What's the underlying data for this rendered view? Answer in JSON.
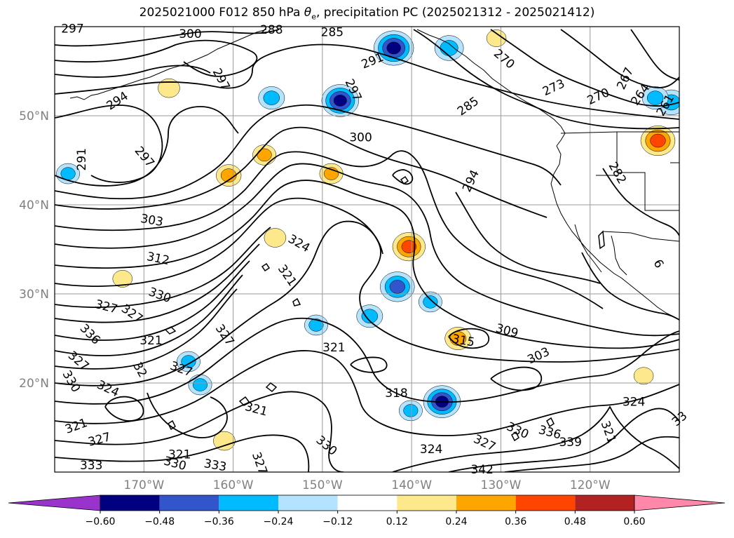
{
  "title": {
    "prefix": "2025021000 F012 850 hPa",
    "symbol": "θ",
    "symbol_sub": "e",
    "suffix": ", precipitation PC (2025021312 - 2025021412)"
  },
  "chart_data": {
    "type": "contour",
    "map_extent": {
      "lon": [
        -180,
        -110
      ],
      "lat": [
        10,
        60
      ]
    },
    "grid": true,
    "x_ticks": [
      "170°W",
      "160°W",
      "150°W",
      "140°W",
      "130°W",
      "120°W"
    ],
    "x_tick_lons": [
      -170,
      -160,
      -150,
      -140,
      -130,
      -120
    ],
    "y_ticks": [
      "20°N",
      "30°N",
      "40°N",
      "50°N"
    ],
    "y_tick_lats": [
      20,
      30,
      40,
      50
    ],
    "theta_e_contour_labels": [
      {
        "text": "297",
        "lon": -178.0,
        "lat": 59.8,
        "rot": 0
      },
      {
        "text": "300",
        "lon": -164.8,
        "lat": 59.2,
        "rot": 0
      },
      {
        "text": "288",
        "lon": -155.7,
        "lat": 59.7,
        "rot": 0
      },
      {
        "text": "285",
        "lon": -148.9,
        "lat": 59.4,
        "rot": 0
      },
      {
        "text": "291",
        "lon": -144.4,
        "lat": 56.2,
        "rot": 22
      },
      {
        "text": "297",
        "lon": -161.3,
        "lat": 54.1,
        "rot": -62
      },
      {
        "text": "294",
        "lon": -173.0,
        "lat": 51.7,
        "rot": 33
      },
      {
        "text": "297",
        "lon": -146.5,
        "lat": 52.9,
        "rot": -65
      },
      {
        "text": "285",
        "lon": -133.7,
        "lat": 51.1,
        "rot": 35
      },
      {
        "text": "270",
        "lon": -129.6,
        "lat": 56.4,
        "rot": -40
      },
      {
        "text": "273",
        "lon": -124.1,
        "lat": 53.2,
        "rot": 25
      },
      {
        "text": "270",
        "lon": -119.1,
        "lat": 52.2,
        "rot": 25
      },
      {
        "text": "267",
        "lon": -116.1,
        "lat": 54.2,
        "rot": 65
      },
      {
        "text": "264",
        "lon": -114.4,
        "lat": 52.4,
        "rot": 55
      },
      {
        "text": "261",
        "lon": -111.6,
        "lat": 51.2,
        "rot": 60
      },
      {
        "text": "291",
        "lon": -177.0,
        "lat": 45.1,
        "rot": 90
      },
      {
        "text": "297",
        "lon": -169.9,
        "lat": 45.4,
        "rot": -50
      },
      {
        "text": "300",
        "lon": -145.7,
        "lat": 47.6,
        "rot": 0
      },
      {
        "text": "294",
        "lon": -133.4,
        "lat": 42.7,
        "rot": 65
      },
      {
        "text": "282",
        "lon": -116.9,
        "lat": 43.6,
        "rot": -60
      },
      {
        "text": "303",
        "lon": -169.1,
        "lat": 38.3,
        "rot": -10
      },
      {
        "text": "324",
        "lon": -152.6,
        "lat": 35.7,
        "rot": -30
      },
      {
        "text": "312",
        "lon": -168.4,
        "lat": 34.0,
        "rot": -12
      },
      {
        "text": "330",
        "lon": -168.2,
        "lat": 29.9,
        "rot": -20
      },
      {
        "text": "327",
        "lon": -174.2,
        "lat": 28.6,
        "rot": -15
      },
      {
        "text": "327",
        "lon": -171.3,
        "lat": 27.8,
        "rot": -35
      },
      {
        "text": "321",
        "lon": -153.9,
        "lat": 32.1,
        "rot": -55
      },
      {
        "text": "336",
        "lon": -176.0,
        "lat": 25.5,
        "rot": -45
      },
      {
        "text": "321",
        "lon": -169.2,
        "lat": 24.8,
        "rot": 0
      },
      {
        "text": "327",
        "lon": -160.9,
        "lat": 25.4,
        "rot": -55
      },
      {
        "text": "327",
        "lon": -177.3,
        "lat": 22.5,
        "rot": -40
      },
      {
        "text": "32",
        "lon": -170.4,
        "lat": 21.5,
        "rot": -60
      },
      {
        "text": "327",
        "lon": -165.8,
        "lat": 21.6,
        "rot": -20
      },
      {
        "text": "330",
        "lon": -178.1,
        "lat": 20.2,
        "rot": -60
      },
      {
        "text": "321",
        "lon": -148.7,
        "lat": 24.0,
        "rot": 0
      },
      {
        "text": "324",
        "lon": -174.0,
        "lat": 19.4,
        "rot": -25
      },
      {
        "text": "318",
        "lon": -141.7,
        "lat": 18.9,
        "rot": 0
      },
      {
        "text": "309",
        "lon": -129.3,
        "lat": 25.9,
        "rot": -15
      },
      {
        "text": "315",
        "lon": -134.2,
        "lat": 24.8,
        "rot": -10
      },
      {
        "text": "303",
        "lon": -125.8,
        "lat": 23.1,
        "rot": 25
      },
      {
        "text": "321",
        "lon": -157.4,
        "lat": 17.1,
        "rot": -15
      },
      {
        "text": "324",
        "lon": -115.1,
        "lat": 17.9,
        "rot": 0
      },
      {
        "text": "33",
        "lon": -110.0,
        "lat": 16.0,
        "rot": 40
      },
      {
        "text": "321",
        "lon": -177.6,
        "lat": 15.2,
        "rot": 20
      },
      {
        "text": "327",
        "lon": -175.0,
        "lat": 13.7,
        "rot": 15
      },
      {
        "text": "330",
        "lon": -128.1,
        "lat": 14.7,
        "rot": -25
      },
      {
        "text": "336",
        "lon": -124.5,
        "lat": 14.5,
        "rot": -15
      },
      {
        "text": "327",
        "lon": -131.8,
        "lat": 13.3,
        "rot": -25
      },
      {
        "text": "339",
        "lon": -122.2,
        "lat": 13.4,
        "rot": 0
      },
      {
        "text": "321",
        "lon": -117.9,
        "lat": 14.5,
        "rot": -70
      },
      {
        "text": "324",
        "lon": -137.8,
        "lat": 12.6,
        "rot": 0
      },
      {
        "text": "330",
        "lon": -149.5,
        "lat": 13.0,
        "rot": -40
      },
      {
        "text": "321",
        "lon": -166.0,
        "lat": 12.0,
        "rot": 0
      },
      {
        "text": "327",
        "lon": -157.0,
        "lat": 11.0,
        "rot": -70
      },
      {
        "text": "333",
        "lon": -175.9,
        "lat": 10.8,
        "rot": 0
      },
      {
        "text": "330",
        "lon": -166.5,
        "lat": 11.0,
        "rot": -15
      },
      {
        "text": "333",
        "lon": -162.0,
        "lat": 10.8,
        "rot": -10
      },
      {
        "text": "342",
        "lon": -132.1,
        "lat": 10.3,
        "rot": 0
      },
      {
        "text": "6",
        "lon": -112.3,
        "lat": 33.4,
        "rot": -60
      }
    ],
    "colorbar": {
      "tick_labels": [
        "−0.60",
        "−0.48",
        "−0.36",
        "−0.24",
        "−0.12",
        "0.12",
        "0.24",
        "0.36",
        "0.48",
        "0.60"
      ],
      "levels": [
        -0.72,
        -0.6,
        -0.48,
        -0.36,
        -0.24,
        -0.12,
        0.12,
        0.24,
        0.36,
        0.48,
        0.6,
        0.72
      ],
      "colors": [
        "#9933cc",
        "#000080",
        "#3355cc",
        "#00bbff",
        "#b3e3ff",
        "#ffffff",
        "#fde98c",
        "#ffa500",
        "#ff4500",
        "#b22222",
        "#ff88aa"
      ],
      "extend": "both"
    },
    "precipitation_pc_features": [
      {
        "lon": -142.0,
        "lat": 57.6,
        "value": -0.55
      },
      {
        "lon": -135.8,
        "lat": 57.6,
        "value": -0.35
      },
      {
        "lon": -148.0,
        "lat": 51.7,
        "value": -0.5
      },
      {
        "lon": -155.7,
        "lat": 52.0,
        "value": -0.3
      },
      {
        "lon": -110.9,
        "lat": 51.5,
        "value": -0.35
      },
      {
        "lon": -178.5,
        "lat": 43.5,
        "value": -0.25
      },
      {
        "lon": -141.6,
        "lat": 30.8,
        "value": -0.45
      },
      {
        "lon": -137.9,
        "lat": 29.1,
        "value": -0.25
      },
      {
        "lon": -144.7,
        "lat": 27.5,
        "value": -0.3
      },
      {
        "lon": -136.6,
        "lat": 17.9,
        "value": -0.5
      },
      {
        "lon": -140.1,
        "lat": 16.9,
        "value": -0.25
      },
      {
        "lon": -150.7,
        "lat": 26.5,
        "value": -0.25
      },
      {
        "lon": -163.7,
        "lat": 19.8,
        "value": -0.25
      },
      {
        "lon": -165.0,
        "lat": 22.4,
        "value": -0.25
      },
      {
        "lon": -112.7,
        "lat": 52.0,
        "value": -0.3
      },
      {
        "lon": -140.3,
        "lat": 35.3,
        "value": 0.42
      },
      {
        "lon": -112.4,
        "lat": 47.2,
        "value": 0.45
      },
      {
        "lon": -134.8,
        "lat": 25.0,
        "value": 0.3
      },
      {
        "lon": -160.5,
        "lat": 43.3,
        "value": 0.28
      },
      {
        "lon": -156.5,
        "lat": 45.6,
        "value": 0.25
      },
      {
        "lon": -149.0,
        "lat": 43.5,
        "value": 0.25
      },
      {
        "lon": -167.2,
        "lat": 53.1,
        "value": 0.22
      },
      {
        "lon": -114.0,
        "lat": 20.8,
        "value": 0.18
      },
      {
        "lon": -172.4,
        "lat": 31.7,
        "value": 0.18
      },
      {
        "lon": -130.5,
        "lat": 58.7,
        "value": 0.18
      },
      {
        "lon": -161.0,
        "lat": 13.5,
        "value": 0.22
      },
      {
        "lon": -155.3,
        "lat": 36.3,
        "value": 0.22
      }
    ]
  }
}
